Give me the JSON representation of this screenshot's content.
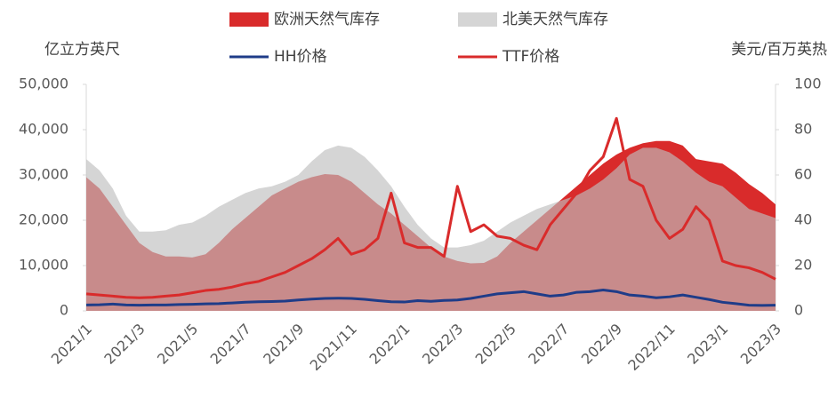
{
  "chart_data": {
    "type": "area-line",
    "y_label": "亿立方英尺",
    "y2_label": "美元/百万英热",
    "categories": [
      "2021/1",
      null,
      null,
      null,
      "2021/3",
      null,
      null,
      null,
      "2021/5",
      null,
      null,
      null,
      "2021/7",
      null,
      null,
      null,
      "2021/9",
      null,
      null,
      null,
      "2021/11",
      null,
      null,
      null,
      "2022/1",
      null,
      null,
      null,
      "2022/3",
      null,
      null,
      null,
      "2022/5",
      null,
      null,
      null,
      "2022/7",
      null,
      null,
      null,
      "2022/9",
      null,
      null,
      null,
      "2022/11",
      null,
      null,
      null,
      "2023/1",
      null,
      null,
      null,
      "2023/3"
    ],
    "ylim": [
      0,
      50000
    ],
    "yticks": [
      0,
      {
        "value": 10000,
        "label": "10,000"
      },
      {
        "value": 20000,
        "label": "20,000"
      },
      {
        "value": 30000,
        "label": "30,000"
      },
      {
        "value": 40000,
        "label": "40,000"
      },
      {
        "value": 50000,
        "label": "50,000"
      }
    ],
    "y2lim": [
      0,
      100
    ],
    "y2ticks": [
      0,
      20,
      40,
      60,
      80,
      100
    ],
    "series": [
      {
        "name": "欧洲天然气库存",
        "type": "area",
        "color": "#d92b2b",
        "values": [
          29500,
          27000,
          23000,
          19000,
          15000,
          13000,
          12000,
          12000,
          11800,
          12500,
          15000,
          18000,
          20500,
          23000,
          25500,
          27000,
          28500,
          29500,
          30200,
          30000,
          28500,
          26000,
          23500,
          21500,
          19000,
          16500,
          14000,
          12000,
          11000,
          10500,
          10600,
          12000,
          15000,
          17500,
          20000,
          22500,
          25000,
          27500,
          30000,
          32500,
          34500,
          36000,
          37000,
          37500,
          37500,
          36500,
          33500,
          33000,
          32500,
          30500,
          28000,
          26000,
          23500
        ]
      },
      {
        "name": "北美天然气库存",
        "type": "area",
        "color": "#bfbfbf",
        "values": [
          33500,
          31000,
          27000,
          21000,
          17500,
          17500,
          17800,
          19000,
          19500,
          21000,
          23000,
          24500,
          26000,
          27000,
          27500,
          28500,
          30000,
          33000,
          35500,
          36500,
          36000,
          34000,
          31000,
          27500,
          23000,
          19000,
          16000,
          14000,
          14000,
          14500,
          15500,
          17500,
          19500,
          21000,
          22500,
          23500,
          24500,
          25500,
          27000,
          29000,
          31500,
          34500,
          36000,
          36000,
          35000,
          33000,
          30500,
          28500,
          27500,
          25000,
          22500,
          21500,
          20500
        ]
      },
      {
        "name": "HH价格",
        "type": "line",
        "axis": "y2",
        "color": "#1f3c88",
        "values": [
          2.6,
          2.7,
          3,
          2.6,
          2.5,
          2.6,
          2.6,
          2.8,
          2.9,
          3.1,
          3.2,
          3.5,
          3.8,
          4,
          4.1,
          4.3,
          4.8,
          5.2,
          5.5,
          5.6,
          5.5,
          5.1,
          4.5,
          4,
          3.9,
          4.5,
          4.2,
          4.6,
          4.8,
          5.5,
          6.5,
          7.5,
          8,
          8.5,
          7.5,
          6.5,
          7,
          8.2,
          8.5,
          9.2,
          8.5,
          7,
          6.5,
          5.8,
          6.2,
          7,
          6,
          5,
          3.8,
          3.2,
          2.5,
          2.4,
          2.5
        ]
      },
      {
        "name": "TTF价格",
        "type": "line",
        "axis": "y2",
        "color": "#d92b2b",
        "values": [
          7.5,
          7,
          6.5,
          6,
          5.8,
          6,
          6.5,
          7,
          8,
          9,
          9.5,
          10.5,
          12,
          13,
          15,
          17,
          20,
          23,
          27,
          32,
          25,
          27,
          32,
          52,
          30,
          28,
          28,
          24,
          55,
          35,
          38,
          33,
          32,
          29,
          27,
          38,
          45,
          52,
          62,
          68,
          85,
          58,
          55,
          40,
          32,
          36,
          46,
          40,
          22,
          20,
          19,
          17,
          14
        ]
      }
    ]
  }
}
